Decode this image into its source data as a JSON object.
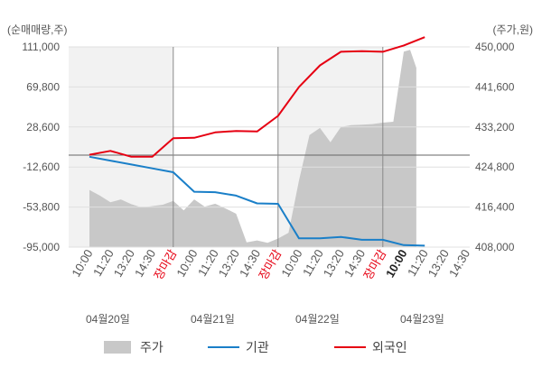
{
  "chart_data": {
    "type": "line",
    "left_axis_unit": "(순매매량,주)",
    "right_axis_unit": "(주가,원)",
    "left_ticks": [
      "111,000",
      "69,800",
      "28,600",
      "-12,600",
      "-53,800",
      "-95,000"
    ],
    "right_ticks": [
      "450,000",
      "441,600",
      "433,200",
      "424,800",
      "416,400",
      "408,000"
    ],
    "left_range": [
      -95000,
      111000
    ],
    "right_range": [
      408000,
      450000
    ],
    "baseline_value": 0,
    "x_ticks": [
      {
        "label": "10:00",
        "style": "normal"
      },
      {
        "label": "11:20",
        "style": "normal"
      },
      {
        "label": "13:20",
        "style": "normal"
      },
      {
        "label": "14:30",
        "style": "normal"
      },
      {
        "label": "장마감",
        "style": "closing"
      },
      {
        "label": "10:00",
        "style": "normal"
      },
      {
        "label": "11:20",
        "style": "normal"
      },
      {
        "label": "13:20",
        "style": "normal"
      },
      {
        "label": "14:30",
        "style": "normal"
      },
      {
        "label": "장마감",
        "style": "closing"
      },
      {
        "label": "10:00",
        "style": "normal"
      },
      {
        "label": "11:20",
        "style": "normal"
      },
      {
        "label": "13:20",
        "style": "normal"
      },
      {
        "label": "14:30",
        "style": "normal"
      },
      {
        "label": "장마감",
        "style": "closing"
      },
      {
        "label": "10:00",
        "style": "highlight"
      },
      {
        "label": "11:20",
        "style": "normal"
      },
      {
        "label": "13:20",
        "style": "normal"
      },
      {
        "label": "14:30",
        "style": "normal"
      }
    ],
    "dates": [
      {
        "label": "04월20일",
        "start_tick": 0
      },
      {
        "label": "04월21일",
        "start_tick": 5
      },
      {
        "label": "04월22일",
        "start_tick": 10
      },
      {
        "label": "04월23일",
        "start_tick": 15
      }
    ],
    "separators_after_tick": [
      4,
      9,
      14
    ],
    "series": [
      {
        "name": "주가",
        "kind": "area",
        "color": "#c8c8c8",
        "axis": "right",
        "x": [
          0,
          0.5,
          1,
          1.5,
          2,
          2.5,
          3,
          3.5,
          4,
          4.5,
          5,
          5.5,
          6,
          6.5,
          7,
          7.5,
          8,
          8.5,
          9,
          9.5,
          10,
          10.5,
          11,
          11.5,
          12,
          12.5,
          13,
          13.5,
          14,
          14.5,
          15,
          15.3,
          15.6
        ],
        "values": [
          420000,
          418800,
          417400,
          418000,
          417000,
          416300,
          416600,
          416900,
          417700,
          415700,
          418000,
          416500,
          417100,
          416100,
          415000,
          409000,
          409400,
          408900,
          409800,
          411000,
          422000,
          431500,
          433000,
          430000,
          433200,
          433600,
          433700,
          433800,
          434100,
          434300,
          449000,
          449400,
          445600
        ]
      },
      {
        "name": "기관",
        "kind": "line",
        "color": "#1a7fc8",
        "axis": "left",
        "x": [
          0,
          1,
          2,
          3,
          4,
          5,
          6,
          7,
          8,
          9,
          10,
          11,
          12,
          13,
          14,
          15,
          16
        ],
        "values": [
          -2000,
          -6000,
          -10000,
          -14000,
          -18000,
          -38000,
          -38500,
          -42000,
          -50000,
          -50500,
          -86000,
          -86000,
          -84500,
          -87500,
          -87500,
          -93000,
          -93500
        ]
      },
      {
        "name": "외국인",
        "kind": "line",
        "color": "#e60012",
        "axis": "left",
        "x": [
          0,
          1,
          2,
          3,
          4,
          5,
          6,
          7,
          8,
          9,
          10,
          11,
          12,
          13,
          14,
          15,
          16
        ],
        "values": [
          0,
          4000,
          -2000,
          -2000,
          17000,
          17500,
          23000,
          24500,
          24000,
          40000,
          69800,
          92000,
          106000,
          106500,
          106000,
          112500,
          121000
        ]
      }
    ]
  },
  "legend": [
    {
      "name": "주가",
      "kind": "area",
      "color": "#c8c8c8"
    },
    {
      "name": "기관",
      "kind": "line",
      "color": "#1a7fc8"
    },
    {
      "name": "외국인",
      "kind": "line",
      "color": "#e60012"
    }
  ]
}
